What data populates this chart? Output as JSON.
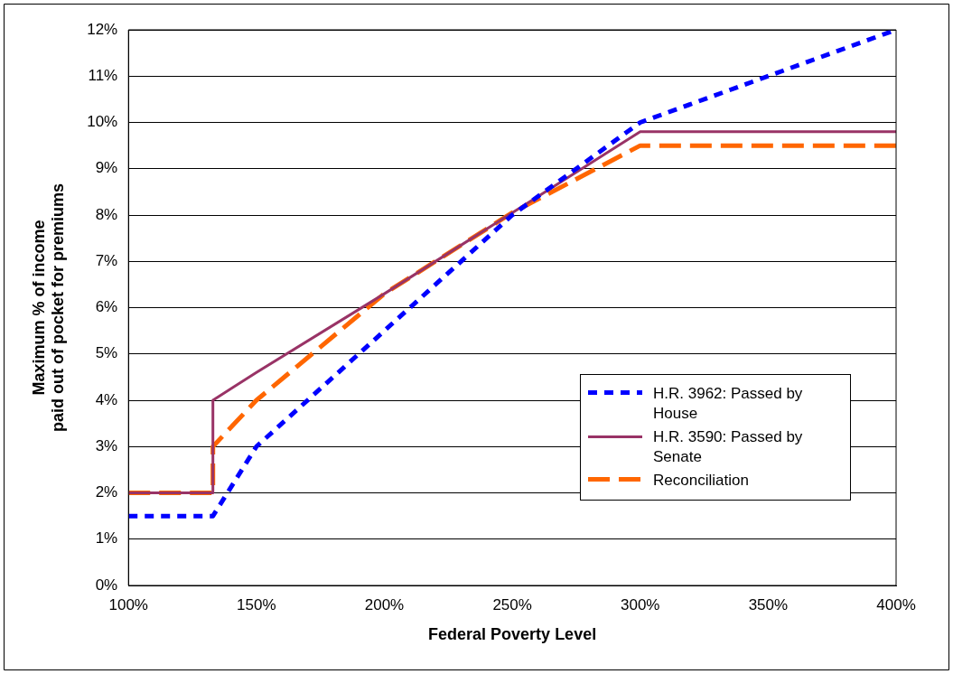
{
  "chart_data": {
    "type": "line",
    "xlabel": "Federal Poverty Level",
    "ylabel": "Maximum % of income\npaid out of pocket for premiums",
    "xlim": [
      100,
      400
    ],
    "xticks": [
      {
        "value": 100,
        "label": "100%"
      },
      {
        "value": 150,
        "label": "150%"
      },
      {
        "value": 200,
        "label": "200%"
      },
      {
        "value": 250,
        "label": "250%"
      },
      {
        "value": 300,
        "label": "300%"
      },
      {
        "value": 350,
        "label": "350%"
      },
      {
        "value": 400,
        "label": "400%"
      }
    ],
    "ylim": [
      0,
      12
    ],
    "yticks": [
      {
        "value": 0,
        "label": "0%"
      },
      {
        "value": 1,
        "label": "1%"
      },
      {
        "value": 2,
        "label": "2%"
      },
      {
        "value": 3,
        "label": "3%"
      },
      {
        "value": 4,
        "label": "4%"
      },
      {
        "value": 5,
        "label": "5%"
      },
      {
        "value": 6,
        "label": "6%"
      },
      {
        "value": 7,
        "label": "7%"
      },
      {
        "value": 8,
        "label": "8%"
      },
      {
        "value": 9,
        "label": "9%"
      },
      {
        "value": 10,
        "label": "10%"
      },
      {
        "value": 11,
        "label": "11%"
      },
      {
        "value": 12,
        "label": "12%"
      }
    ],
    "grid": "y",
    "legend": "right",
    "marker": "none",
    "series": [
      {
        "name": "H.R. 3962: Passed by House",
        "color": "#0000ff",
        "line_style": "dotted",
        "x": [
          100,
          133,
          150,
          200,
          250,
          300,
          400
        ],
        "values": [
          1.5,
          1.5,
          3,
          5.5,
          8,
          10,
          12
        ]
      },
      {
        "name": "H.R. 3590: Passed by Senate",
        "color": "#993366",
        "line_style": "solid",
        "x": [
          100,
          133,
          133,
          150,
          200,
          250,
          300,
          400
        ],
        "values": [
          2,
          2,
          4,
          4.6,
          6.3,
          8.05,
          9.8,
          9.8
        ]
      },
      {
        "name": "Reconciliation",
        "color": "#ff6600",
        "line_style": "dashed",
        "x": [
          100,
          133,
          133,
          150,
          200,
          250,
          300,
          400
        ],
        "values": [
          2,
          2,
          3,
          4,
          6.3,
          8.05,
          9.5,
          9.5
        ]
      }
    ]
  }
}
